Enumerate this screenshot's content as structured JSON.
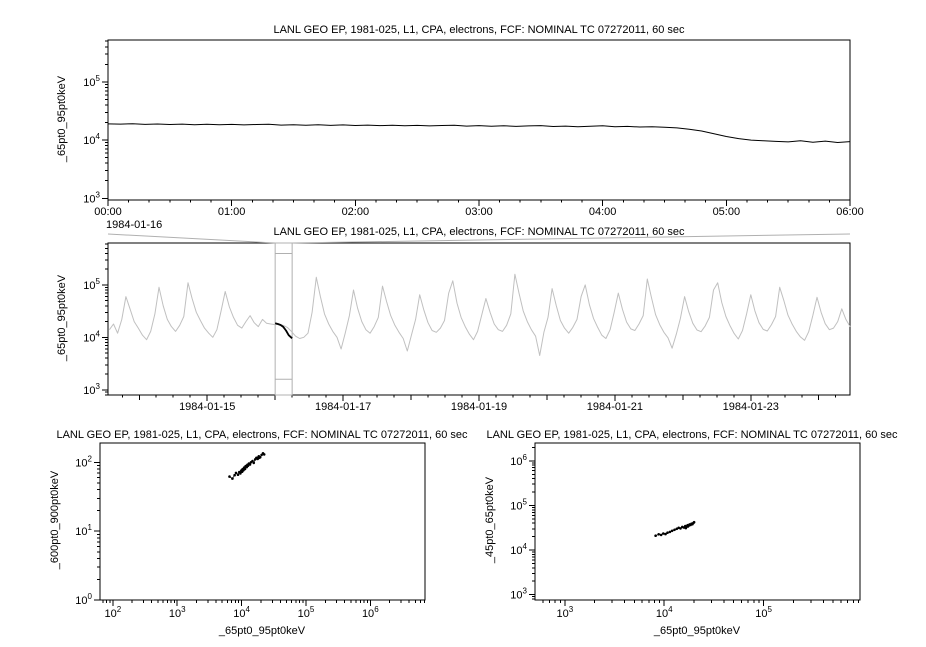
{
  "app": {
    "background": "#ffffff",
    "foreground": "#000000",
    "context_series_color": "#c0c0c0",
    "highlight_series_color": "#000000",
    "connector_color": "#b0b0b0"
  },
  "chart_data": [
    {
      "id": "time-series-zoom",
      "type": "line",
      "title": "LANL GEO EP, 1981-025, L1, CPA, electrons, FCF: NOMINAL TC 07272011, 60 sec",
      "ylabel": "_65pt0_95pt0keV",
      "x_context_label": "1984-01-16",
      "grid": false,
      "legend": "none",
      "y_axis": {
        "scale": "log",
        "lim_exp": [
          2.97,
          5.72
        ],
        "major_exp": [
          3,
          4,
          5
        ]
      },
      "x_axis": {
        "scale": "linear",
        "lim": [
          0,
          6
        ],
        "minor_step": 0.1666667,
        "major": [
          {
            "v": 0,
            "label": "00:00"
          },
          {
            "v": 1,
            "label": "01:00"
          },
          {
            "v": 2,
            "label": "02:00"
          },
          {
            "v": 3,
            "label": "03:00"
          },
          {
            "v": 4,
            "label": "04:00"
          },
          {
            "v": 5,
            "label": "05:00"
          },
          {
            "v": 6,
            "label": "06:00"
          }
        ]
      },
      "series": [
        {
          "name": "65pt0_95pt0keV-zoomed",
          "style": "line",
          "color": "#000000",
          "width": 1,
          "x0": 0,
          "dx": 0.1,
          "y": [
            19000,
            18800,
            19100,
            18600,
            18900,
            18500,
            18800,
            18400,
            18700,
            18300,
            18600,
            18200,
            18500,
            18700,
            18100,
            18400,
            18000,
            18300,
            17900,
            18200,
            17800,
            18100,
            17700,
            18000,
            17600,
            17900,
            17500,
            17800,
            18000,
            17400,
            17700,
            17300,
            17600,
            17200,
            17500,
            17700,
            17100,
            17400,
            17000,
            17300,
            17600,
            16900,
            17200,
            16800,
            17000,
            16600,
            16200,
            15400,
            14300,
            12800,
            11500,
            10600,
            10000,
            9700,
            9500,
            9300,
            9700,
            9200,
            9600,
            9100,
            9400
          ]
        }
      ]
    },
    {
      "id": "time-series-context",
      "type": "line",
      "title": "LANL GEO EP, 1981-025, L1, CPA, electrons, FCF: NOMINAL TC 07272011, 60 sec",
      "ylabel": "_65pt0_95pt0keV",
      "grid": false,
      "legend": "none",
      "y_axis": {
        "scale": "log",
        "lim_exp": [
          2.9,
          5.8
        ],
        "major_exp": [
          3,
          4,
          5
        ]
      },
      "x_axis": {
        "scale": "linear",
        "lim": [
          0.54,
          11.46
        ],
        "minor_step": 0.25,
        "medium_step": 1,
        "unit": "days since 1984-01-13 00:00",
        "major": [
          {
            "v": 2,
            "label": "1984-01-15"
          },
          {
            "v": 4,
            "label": "1984-01-17"
          },
          {
            "v": 6,
            "label": "1984-01-19"
          },
          {
            "v": 8,
            "label": "1984-01-21"
          },
          {
            "v": 10,
            "label": "1984-01-23"
          }
        ]
      },
      "zoom_box": {
        "x0": 3.0,
        "x1": 3.25,
        "y0_exp": 3.2,
        "y1_exp": 5.6
      },
      "series": [
        {
          "name": "65pt0_95pt0keV-context",
          "style": "line",
          "color": "#c0c0c0",
          "width": 1,
          "x0": 0.56,
          "dx": 0.0609,
          "y": [
            14000,
            18000,
            12000,
            22000,
            60000,
            35000,
            20000,
            15000,
            11000,
            9000,
            13000,
            28000,
            90000,
            40000,
            22000,
            16000,
            13000,
            17000,
            25000,
            110000,
            55000,
            30000,
            21000,
            15000,
            12000,
            10000,
            14000,
            32000,
            75000,
            38000,
            24000,
            17000,
            15000,
            20000,
            26000,
            19000,
            16000,
            22000,
            18500,
            18000,
            17500,
            17800,
            17000,
            15500,
            13000,
            10500,
            9500,
            10000,
            12000,
            30000,
            140000,
            60000,
            28000,
            18000,
            13000,
            10000,
            6000,
            12000,
            26000,
            80000,
            36000,
            20000,
            14000,
            12000,
            16000,
            24000,
            95000,
            48000,
            26000,
            17000,
            12500,
            9500,
            5500,
            11000,
            22000,
            65000,
            33000,
            19000,
            13500,
            12500,
            15000,
            21000,
            70000,
            120000,
            45000,
            24000,
            16000,
            11500,
            9000,
            13000,
            27000,
            55000,
            30000,
            18000,
            14000,
            13000,
            17000,
            28000,
            160000,
            70000,
            32000,
            20000,
            14000,
            10500,
            4500,
            12500,
            24000,
            85000,
            40000,
            21000,
            15000,
            12000,
            15500,
            22000,
            60000,
            100000,
            42000,
            23000,
            15500,
            11000,
            9500,
            14000,
            30000,
            70000,
            34000,
            19500,
            14500,
            13500,
            18000,
            26000,
            130000,
            58000,
            27000,
            17500,
            12500,
            9800,
            6200,
            11500,
            23000,
            60000,
            31000,
            18500,
            13800,
            12800,
            16500,
            24000,
            80000,
            110000,
            46000,
            25000,
            16500,
            11800,
            9300,
            13500,
            28000,
            65000,
            32000,
            19000,
            14200,
            13200,
            17500,
            25000,
            90000,
            50000,
            26500,
            18000,
            13000,
            10200,
            8800,
            12800,
            26000,
            58000,
            30000,
            18200,
            14000,
            15000,
            20000,
            35000,
            22000,
            16000
          ]
        },
        {
          "name": "selected-interval-highlight",
          "style": "line",
          "color": "#000000",
          "width": 1.8,
          "x": [
            3.0,
            3.04,
            3.08,
            3.12,
            3.16,
            3.2,
            3.25
          ],
          "y": [
            18500,
            18000,
            17200,
            15800,
            13500,
            11000,
            9600
          ]
        }
      ]
    },
    {
      "id": "scatter-600-900-vs-65-95",
      "type": "scatter",
      "title": "LANL GEO EP, 1981-025, L1, CPA, electrons, FCF: NOMINAL TC 07272011, 60 sec",
      "ylabel": "_600pt0_900pt0keV",
      "xlabel": "_65pt0_95pt0keV",
      "grid": false,
      "legend": "none",
      "y_axis": {
        "scale": "log",
        "lim_exp": [
          0,
          2.28
        ],
        "major_exp": [
          0,
          1,
          2
        ]
      },
      "x_axis": {
        "scale": "log",
        "lim_exp": [
          1.8,
          6.85
        ],
        "major_exp": [
          2,
          3,
          4,
          5,
          6
        ]
      },
      "series": [
        {
          "name": "correlation-600-900-vs-65-95",
          "style": "scatter",
          "color": "#000000",
          "points": [
            [
              6500,
              62
            ],
            [
              7200,
              58
            ],
            [
              7800,
              65
            ],
            [
              8200,
              70
            ],
            [
              8800,
              66
            ],
            [
              9200,
              72
            ],
            [
              9600,
              69
            ],
            [
              9900,
              76
            ],
            [
              10100,
              74
            ],
            [
              10200,
              73
            ],
            [
              10300,
              78
            ],
            [
              10400,
              80
            ],
            [
              10500,
              76
            ],
            [
              10700,
              77
            ],
            [
              11000,
              84
            ],
            [
              11300,
              80
            ],
            [
              11600,
              88
            ],
            [
              12000,
              85
            ],
            [
              12300,
              92
            ],
            [
              12600,
              89
            ],
            [
              13000,
              96
            ],
            [
              13500,
              93
            ],
            [
              14000,
              100
            ],
            [
              14800,
              104
            ],
            [
              15500,
              98
            ],
            [
              16200,
              110
            ],
            [
              17000,
              116
            ],
            [
              17500,
              114
            ],
            [
              17800,
              112
            ],
            [
              18200,
              118
            ],
            [
              18500,
              122
            ],
            [
              18800,
              116
            ],
            [
              19500,
              118
            ],
            [
              20500,
              128
            ],
            [
              21500,
              135
            ],
            [
              22500,
              130
            ]
          ]
        }
      ]
    },
    {
      "id": "scatter-45-65-vs-65-95",
      "type": "scatter",
      "title": "LANL GEO EP, 1981-025, L1, CPA, electrons, FCF: NOMINAL TC 07272011, 60 sec",
      "ylabel": "_45pt0_65pt0keV",
      "xlabel": "_65pt0_95pt0keV",
      "grid": false,
      "legend": "none",
      "y_axis": {
        "scale": "log",
        "lim_exp": [
          2.88,
          6.4
        ],
        "major_exp": [
          3,
          4,
          5,
          6
        ]
      },
      "x_axis": {
        "scale": "log",
        "lim_exp": [
          2.7,
          5.97
        ],
        "major_exp": [
          3,
          4,
          5
        ]
      },
      "series": [
        {
          "name": "correlation-45-65-vs-65-95",
          "style": "scatter",
          "color": "#000000",
          "points": [
            [
              8200,
              21000
            ],
            [
              8800,
              22500
            ],
            [
              9300,
              21800
            ],
            [
              9800,
              23500
            ],
            [
              10300,
              22800
            ],
            [
              10800,
              24500
            ],
            [
              11400,
              25500
            ],
            [
              12000,
              27000
            ],
            [
              12700,
              28500
            ],
            [
              13400,
              30000
            ],
            [
              14000,
              31500
            ],
            [
              14600,
              30500
            ],
            [
              15200,
              33000
            ],
            [
              15800,
              32000
            ],
            [
              16300,
              34500
            ],
            [
              16800,
              33500
            ],
            [
              17200,
              36000
            ],
            [
              17600,
              35000
            ],
            [
              18000,
              37500
            ],
            [
              18400,
              36500
            ],
            [
              18800,
              39000
            ],
            [
              19200,
              38000
            ],
            [
              19600,
              40500
            ],
            [
              20000,
              42000
            ],
            [
              16500,
              31000
            ],
            [
              17300,
              33800
            ]
          ]
        }
      ]
    }
  ]
}
